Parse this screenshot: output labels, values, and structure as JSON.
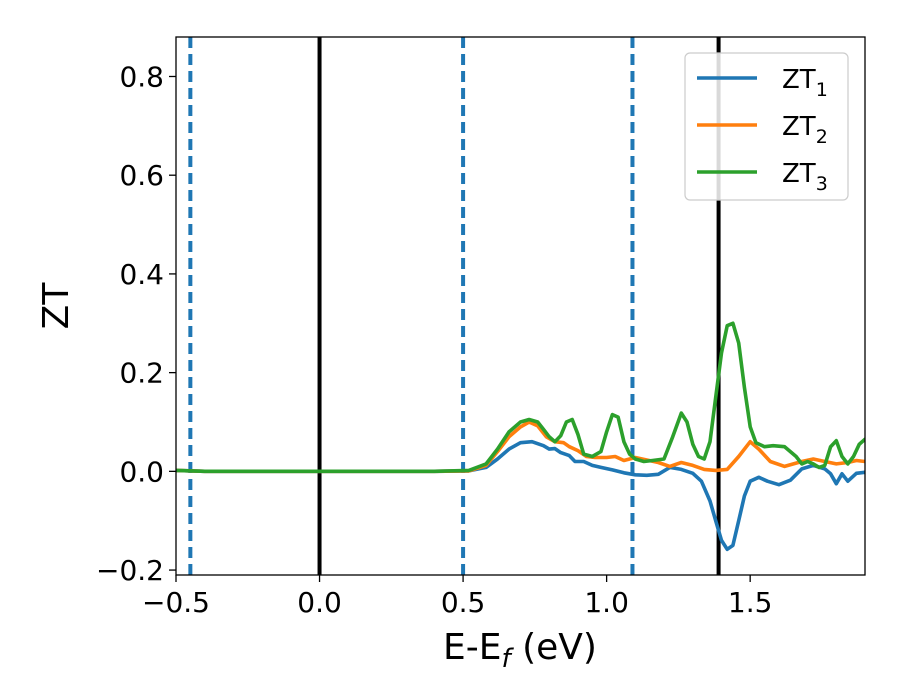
{
  "chart_data": {
    "type": "line",
    "title": "",
    "xlabel": "E-E",
    "xlabel_subscript": "f",
    "xlabel_unit": " (eV)",
    "ylabel": "ZT",
    "xlim": [
      -0.5,
      1.9
    ],
    "ylim": [
      -0.21,
      0.88
    ],
    "xticks": [
      -0.5,
      0.0,
      0.5,
      1.0,
      1.5
    ],
    "xtick_labels": [
      "−0.5",
      "0.0",
      "0.5",
      "1.0",
      "1.5"
    ],
    "yticks": [
      -0.2,
      0.0,
      0.2,
      0.4,
      0.6,
      0.8
    ],
    "ytick_labels": [
      "−0.2",
      "0.0",
      "0.2",
      "0.4",
      "0.6",
      "0.8"
    ],
    "grid": false,
    "legend_position": "top-right",
    "vlines": [
      {
        "x": -0.45,
        "style": "dashed",
        "color": "#1f77b4"
      },
      {
        "x": 0.0,
        "style": "solid",
        "color": "#000000"
      },
      {
        "x": 0.5,
        "style": "dashed",
        "color": "#1f77b4"
      },
      {
        "x": 1.09,
        "style": "dashed",
        "color": "#1f77b4"
      },
      {
        "x": 1.39,
        "style": "solid",
        "color": "#000000"
      }
    ],
    "series": [
      {
        "name": "ZT",
        "name_subscript": "1",
        "color": "#1f77b4",
        "points": [
          [
            -0.5,
            0.002
          ],
          [
            -0.4,
            0.0
          ],
          [
            0.0,
            0.0
          ],
          [
            0.4,
            0.0
          ],
          [
            0.52,
            0.001
          ],
          [
            0.58,
            0.008
          ],
          [
            0.62,
            0.025
          ],
          [
            0.66,
            0.045
          ],
          [
            0.7,
            0.058
          ],
          [
            0.74,
            0.06
          ],
          [
            0.78,
            0.052
          ],
          [
            0.8,
            0.045
          ],
          [
            0.82,
            0.046
          ],
          [
            0.84,
            0.038
          ],
          [
            0.87,
            0.032
          ],
          [
            0.89,
            0.02
          ],
          [
            0.92,
            0.02
          ],
          [
            0.95,
            0.012
          ],
          [
            0.98,
            0.008
          ],
          [
            1.02,
            0.003
          ],
          [
            1.06,
            -0.003
          ],
          [
            1.1,
            -0.007
          ],
          [
            1.14,
            -0.008
          ],
          [
            1.18,
            -0.006
          ],
          [
            1.22,
            0.008
          ],
          [
            1.26,
            0.004
          ],
          [
            1.3,
            -0.004
          ],
          [
            1.33,
            -0.02
          ],
          [
            1.36,
            -0.06
          ],
          [
            1.38,
            -0.1
          ],
          [
            1.4,
            -0.14
          ],
          [
            1.42,
            -0.158
          ],
          [
            1.44,
            -0.15
          ],
          [
            1.46,
            -0.1
          ],
          [
            1.48,
            -0.05
          ],
          [
            1.5,
            -0.02
          ],
          [
            1.53,
            -0.012
          ],
          [
            1.56,
            -0.02
          ],
          [
            1.6,
            -0.027
          ],
          [
            1.64,
            -0.018
          ],
          [
            1.68,
            0.005
          ],
          [
            1.72,
            0.012
          ],
          [
            1.76,
            0.005
          ],
          [
            1.78,
            -0.005
          ],
          [
            1.8,
            -0.025
          ],
          [
            1.82,
            -0.005
          ],
          [
            1.84,
            -0.02
          ],
          [
            1.87,
            -0.004
          ],
          [
            1.9,
            -0.002
          ]
        ]
      },
      {
        "name": "ZT",
        "name_subscript": "2",
        "color": "#ff7f0e",
        "points": [
          [
            -0.5,
            0.002
          ],
          [
            -0.4,
            0.0
          ],
          [
            0.0,
            0.0
          ],
          [
            0.4,
            0.0
          ],
          [
            0.52,
            0.001
          ],
          [
            0.58,
            0.012
          ],
          [
            0.62,
            0.04
          ],
          [
            0.66,
            0.07
          ],
          [
            0.7,
            0.09
          ],
          [
            0.73,
            0.1
          ],
          [
            0.76,
            0.092
          ],
          [
            0.79,
            0.07
          ],
          [
            0.82,
            0.06
          ],
          [
            0.85,
            0.058
          ],
          [
            0.87,
            0.05
          ],
          [
            0.9,
            0.042
          ],
          [
            0.93,
            0.03
          ],
          [
            0.96,
            0.028
          ],
          [
            1.0,
            0.028
          ],
          [
            1.03,
            0.03
          ],
          [
            1.06,
            0.022
          ],
          [
            1.1,
            0.028
          ],
          [
            1.14,
            0.023
          ],
          [
            1.18,
            0.018
          ],
          [
            1.22,
            0.01
          ],
          [
            1.26,
            0.018
          ],
          [
            1.3,
            0.012
          ],
          [
            1.34,
            0.004
          ],
          [
            1.38,
            0.002
          ],
          [
            1.42,
            0.004
          ],
          [
            1.46,
            0.03
          ],
          [
            1.5,
            0.06
          ],
          [
            1.53,
            0.045
          ],
          [
            1.57,
            0.02
          ],
          [
            1.62,
            0.01
          ],
          [
            1.68,
            0.02
          ],
          [
            1.72,
            0.025
          ],
          [
            1.76,
            0.02
          ],
          [
            1.8,
            0.015
          ],
          [
            1.84,
            0.018
          ],
          [
            1.87,
            0.022
          ],
          [
            1.9,
            0.02
          ]
        ]
      },
      {
        "name": "ZT",
        "name_subscript": "3",
        "color": "#2ca02c",
        "points": [
          [
            -0.5,
            0.002
          ],
          [
            -0.4,
            0.0
          ],
          [
            0.0,
            0.0
          ],
          [
            0.4,
            0.0
          ],
          [
            0.52,
            0.002
          ],
          [
            0.58,
            0.015
          ],
          [
            0.62,
            0.045
          ],
          [
            0.66,
            0.08
          ],
          [
            0.7,
            0.1
          ],
          [
            0.73,
            0.105
          ],
          [
            0.76,
            0.1
          ],
          [
            0.78,
            0.085
          ],
          [
            0.8,
            0.07
          ],
          [
            0.82,
            0.06
          ],
          [
            0.84,
            0.072
          ],
          [
            0.86,
            0.1
          ],
          [
            0.88,
            0.105
          ],
          [
            0.9,
            0.075
          ],
          [
            0.92,
            0.035
          ],
          [
            0.95,
            0.03
          ],
          [
            0.98,
            0.04
          ],
          [
            1.0,
            0.08
          ],
          [
            1.02,
            0.115
          ],
          [
            1.04,
            0.11
          ],
          [
            1.06,
            0.06
          ],
          [
            1.08,
            0.035
          ],
          [
            1.1,
            0.025
          ],
          [
            1.13,
            0.02
          ],
          [
            1.16,
            0.022
          ],
          [
            1.2,
            0.025
          ],
          [
            1.23,
            0.07
          ],
          [
            1.26,
            0.118
          ],
          [
            1.28,
            0.1
          ],
          [
            1.3,
            0.055
          ],
          [
            1.32,
            0.03
          ],
          [
            1.34,
            0.025
          ],
          [
            1.36,
            0.06
          ],
          [
            1.38,
            0.15
          ],
          [
            1.4,
            0.24
          ],
          [
            1.42,
            0.295
          ],
          [
            1.44,
            0.3
          ],
          [
            1.46,
            0.26
          ],
          [
            1.48,
            0.17
          ],
          [
            1.5,
            0.09
          ],
          [
            1.52,
            0.058
          ],
          [
            1.55,
            0.05
          ],
          [
            1.58,
            0.052
          ],
          [
            1.62,
            0.05
          ],
          [
            1.66,
            0.03
          ],
          [
            1.68,
            0.015
          ],
          [
            1.7,
            0.02
          ],
          [
            1.72,
            0.015
          ],
          [
            1.74,
            0.008
          ],
          [
            1.76,
            0.012
          ],
          [
            1.78,
            0.05
          ],
          [
            1.8,
            0.062
          ],
          [
            1.82,
            0.03
          ],
          [
            1.84,
            0.015
          ],
          [
            1.86,
            0.03
          ],
          [
            1.88,
            0.055
          ],
          [
            1.9,
            0.065
          ]
        ]
      }
    ]
  }
}
